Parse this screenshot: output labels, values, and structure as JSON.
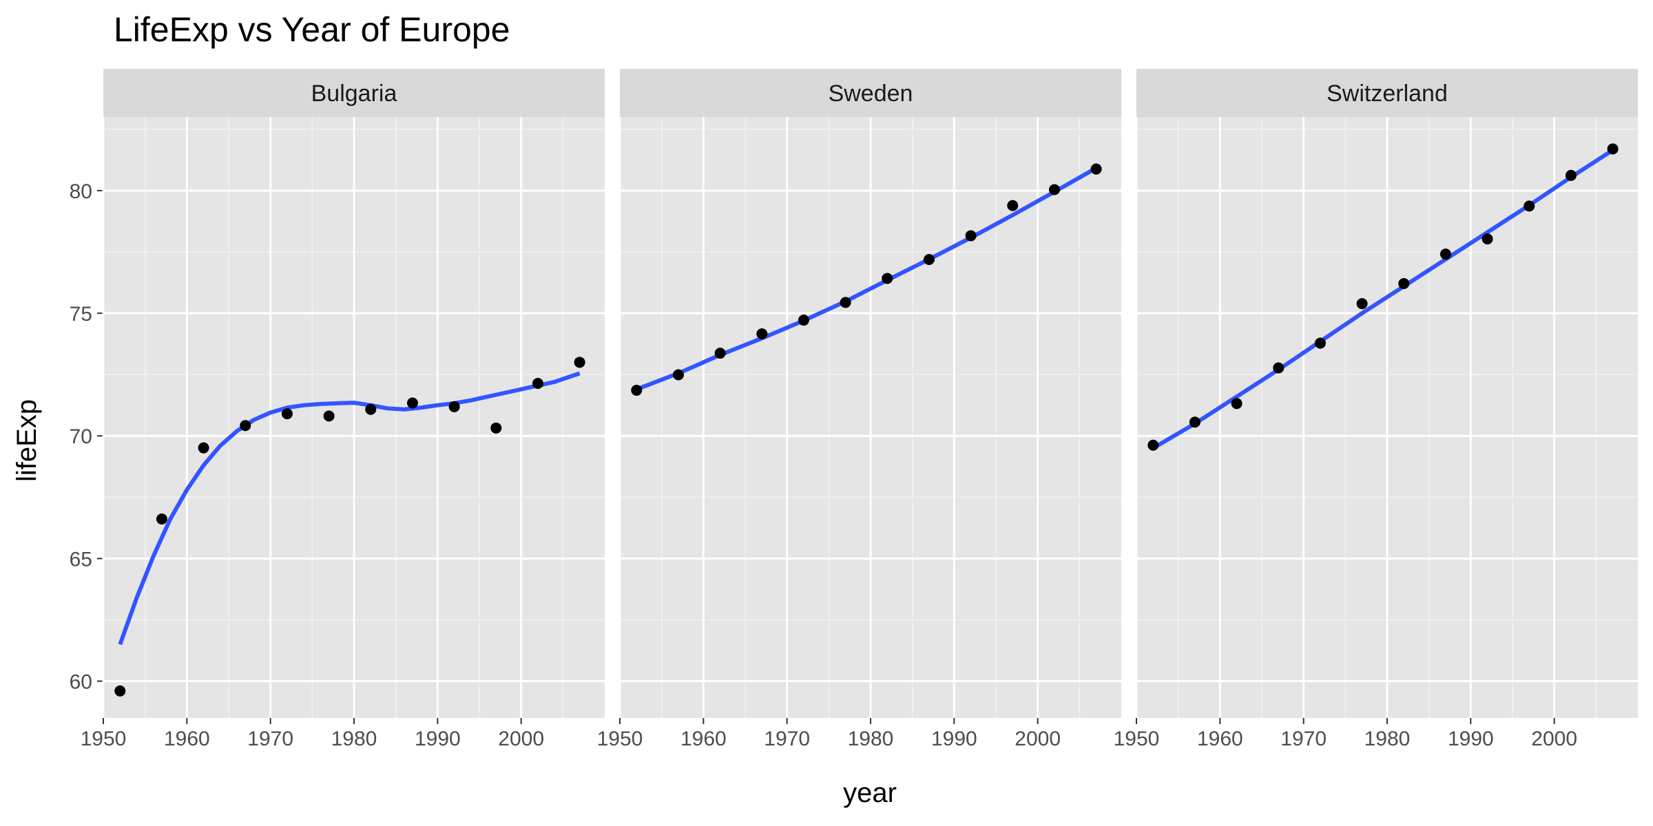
{
  "chart_data": {
    "type": "scatter",
    "title": "LifeExp vs Year of Europe",
    "xlabel": "year",
    "ylabel": "lifeExp",
    "xlim": [
      1950,
      2010
    ],
    "ylim": [
      58.5,
      83
    ],
    "x_ticks": [
      1950,
      1960,
      1970,
      1980,
      1990,
      2000
    ],
    "y_ticks": [
      60,
      65,
      70,
      75,
      80
    ],
    "grid": true,
    "point_color": "#000000",
    "smooth_color": "#3355ff",
    "panel_background": "#e5e5e5",
    "strip_background": "#d9d9d9",
    "facets": [
      {
        "name": "Bulgaria",
        "x": [
          1952,
          1957,
          1962,
          1967,
          1972,
          1977,
          1982,
          1987,
          1992,
          1997,
          2002,
          2007
        ],
        "y": [
          59.6,
          66.61,
          69.51,
          70.42,
          70.9,
          70.81,
          71.08,
          71.34,
          71.19,
          70.32,
          72.14,
          73.0
        ],
        "smooth": {
          "x": [
            1952,
            1954,
            1956,
            1958,
            1960,
            1962,
            1964,
            1966,
            1968,
            1970,
            1972,
            1974,
            1976,
            1978,
            1980,
            1982,
            1984,
            1986,
            1988,
            1990,
            1992,
            1994,
            1996,
            1998,
            2000,
            2002,
            2004,
            2007
          ],
          "y": [
            61.5,
            63.4,
            65.1,
            66.6,
            67.8,
            68.8,
            69.6,
            70.2,
            70.65,
            70.95,
            71.15,
            71.25,
            71.3,
            71.33,
            71.35,
            71.25,
            71.12,
            71.08,
            71.15,
            71.25,
            71.33,
            71.45,
            71.6,
            71.75,
            71.9,
            72.05,
            72.2,
            72.55
          ]
        }
      },
      {
        "name": "Sweden",
        "x": [
          1952,
          1957,
          1962,
          1967,
          1972,
          1977,
          1982,
          1987,
          1992,
          1997,
          2002,
          2007
        ],
        "y": [
          71.86,
          72.49,
          73.37,
          74.16,
          74.72,
          75.44,
          76.42,
          77.19,
          78.16,
          79.39,
          80.04,
          80.88
        ],
        "smooth": {
          "x": [
            1952,
            1957,
            1962,
            1967,
            1972,
            1977,
            1982,
            1987,
            1992,
            1997,
            2002,
            2007
          ],
          "y": [
            71.9,
            72.55,
            73.3,
            73.98,
            74.7,
            75.48,
            76.35,
            77.2,
            78.08,
            79.0,
            79.95,
            80.92
          ]
        }
      },
      {
        "name": "Switzerland",
        "x": [
          1952,
          1957,
          1962,
          1967,
          1972,
          1977,
          1982,
          1987,
          1992,
          1997,
          2002,
          2007
        ],
        "y": [
          69.62,
          70.56,
          71.32,
          72.77,
          73.78,
          75.39,
          76.21,
          77.41,
          78.03,
          79.37,
          80.62,
          81.7
        ],
        "smooth": {
          "x": [
            1952,
            1957,
            1962,
            1967,
            1972,
            1977,
            1982,
            1987,
            1992,
            1997,
            2002,
            2007
          ],
          "y": [
            69.5,
            70.5,
            71.6,
            72.7,
            73.85,
            75.0,
            76.1,
            77.2,
            78.3,
            79.4,
            80.55,
            81.65
          ]
        }
      }
    ]
  }
}
